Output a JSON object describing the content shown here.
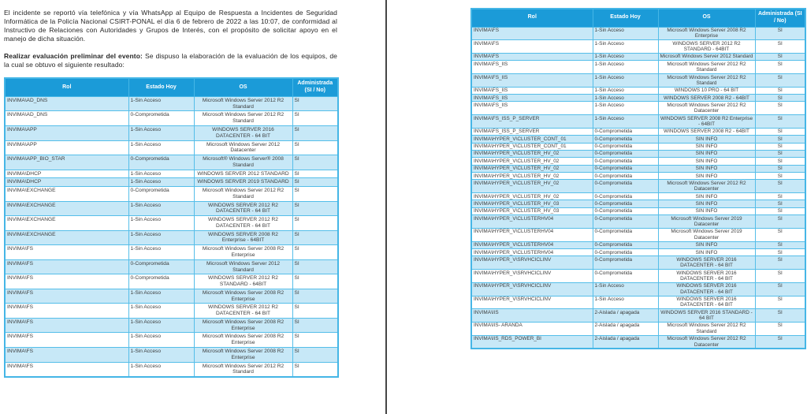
{
  "document": {
    "paragraph1": "El incidente se reportó vía telefónica y vía WhatsApp al Equipo de Respuesta a Incidentes de Seguridad Informática de la Policía Nacional CSIRT-PONAL el día 6 de febrero de 2022 a las 10:07, de conformidad al Instructivo de Relaciones con Autoridades y Grupos de Interés, con el propósito de solicitar apoyo en el manejo de dicha situación.",
    "paragraph2_lead": "Realizar evaluación preliminar del evento:",
    "paragraph2_rest": "Se dispuso la elaboración de la evaluación de los equipos, de la cual se obtuvo el siguiente resultado:"
  },
  "colors": {
    "header_bg": "#1b9bd8",
    "row_alt_bg": "#c7e8f7",
    "row_bg": "#ffffff",
    "cell_border": "#55bee9",
    "header_text": "#ffffff",
    "body_text": "#3c3c3c",
    "divider": "#454545"
  },
  "tables": {
    "headers": [
      "Rol",
      "Estado Hoy",
      "OS",
      "Administrada (SI / No)"
    ],
    "left": {
      "rows": [
        [
          "INVIMA\\AD_DNS",
          "1-Sin Acceso",
          "Microsoft Windows Server 2012 R2 Standard",
          "SI"
        ],
        [
          "INVIMA\\AD_DNS",
          "0-Comprometida",
          "Microsoft Windows Server 2012 R2 Standard",
          "SI"
        ],
        [
          "INVIMA\\APP",
          "1-Sin Acceso",
          "WINDOWS SERVER 2016 DATACENTER - 64 BIT",
          "SI"
        ],
        [
          "INVIMA\\APP",
          "1-Sin Acceso",
          "Microsoft Windows Server 2012 Datacenter",
          "SI"
        ],
        [
          "INVIMA\\APP_BIO_STAR",
          "0-Comprometida",
          "Microsoft® Windows Server® 2008 Standard",
          "SI"
        ],
        [
          "INVIMA\\DHCP",
          "1-Sin Acceso",
          "WINDOWS SERVER 2012 STANDARD",
          "SI"
        ],
        [
          "INVIMA\\DHCP",
          "1-Sin Acceso",
          "WINDOWS SERVER 2019 STANDARD",
          "SI"
        ],
        [
          "INVIMA\\EXCHANGE",
          "0-Comprometida",
          "Microsoft Windows Server 2012 R2 Standard",
          "SI"
        ],
        [
          "INVIMA\\EXCHANGE",
          "1-Sin Acceso",
          "WINDOWS SERVER 2012 R2 DATACENTER - 64 BIT",
          "SI"
        ],
        [
          "INVIMA\\EXCHANGE",
          "1-Sin Acceso",
          "WINDOWS SERVER 2012 R2 DATACENTER - 64 BIT",
          "SI"
        ],
        [
          "INVIMA\\EXCHANGE",
          "1-Sin Acceso",
          "WINDOWS SERVER 2008 R2 Enterprise - 64BIT",
          "SI"
        ],
        [
          "INVIMA\\FS",
          "1-Sin Acceso",
          "Microsoft Windows Server 2008 R2 Enterprise",
          "SI"
        ],
        [
          "INVIMA\\FS",
          "0-Comprometida",
          "Microsoft Windows Server 2012 Standard",
          "SI"
        ],
        [
          "INVIMA\\FS",
          "0-Comprometida",
          "WINDOWS SERVER 2012 R2 STANDARD - 64BIT",
          "SI"
        ],
        [
          "INVIMA\\FS",
          "1-Sin Acceso",
          "Microsoft Windows Server 2008 R2 Enterprise",
          "SI"
        ],
        [
          "INVIMA\\FS",
          "1-Sin Acceso",
          "WINDOWS SERVER 2012 R2 DATACENTER - 64 BIT",
          "SI"
        ],
        [
          "INVIMA\\FS",
          "1-Sin Acceso",
          "Microsoft Windows Server 2008 R2 Enterprise",
          "SI"
        ],
        [
          "INVIMA\\FS",
          "1-Sin Acceso",
          "Microsoft Windows Server 2008 R2 Enterprise",
          "SI"
        ],
        [
          "INVIMA\\FS",
          "1-Sin Acceso",
          "Microsoft Windows Server 2008 R2 Enterprise",
          "SI"
        ],
        [
          "INVIMA\\FS",
          "1-Sin Acceso",
          "Microsoft Windows Server 2012 R2 Standard",
          "SI"
        ]
      ]
    },
    "right": {
      "rows": [
        [
          "INVIMA\\FS",
          "1-Sin Acceso",
          "Microsoft Windows Server 2008 R2 Enterprise",
          "SI"
        ],
        [
          "INVIMA\\FS",
          "1-Sin Acceso",
          "WINDOWS SERVER 2012 R2 STANDARD - 64BIT",
          "SI"
        ],
        [
          "INVIMA\\FS",
          "1-Sin Acceso",
          "Microsoft Windows Server 2012 Standard",
          "SI"
        ],
        [
          "INVIMA\\FS_IIS",
          "1-Sin Acceso",
          "Microsoft Windows Server 2012 R2 Standard",
          "SI"
        ],
        [
          "INVIMA\\FS_IIS",
          "1-Sin Acceso",
          "Microsoft Windows Server 2012 R2 Standard",
          "SI"
        ],
        [
          "INVIMA\\FS_IIS",
          "1-Sin Acceso",
          "WINDOWS 10 PRO - 64 BIT",
          "SI"
        ],
        [
          "INVIMA\\FS_IIS",
          "1-Sin Acceso",
          "WINDOWS SERVER 2008 R2 - 64BIT",
          "SI"
        ],
        [
          "INVIMA\\FS_IIS",
          "1-Sin Acceso",
          "Microsoft Windows Server 2012 R2 Datacenter",
          "SI"
        ],
        [
          "INVIMA\\FS_ISS_P_SERVER",
          "1-Sin Acceso",
          "WINDOWS SERVER 2008 R2 Enterprise - 64BIT",
          "SI"
        ],
        [
          "INVIMA\\FS_ISS_P_SERVER",
          "0-Comprometida",
          "WINDOWS SERVER 2008 R2 - 64BIT",
          "SI"
        ],
        [
          "INVIMA\\HYPER_V\\CLUSTER_CONT_01",
          "0-Comprometida",
          "SIN INFO",
          "SI"
        ],
        [
          "INVIMA\\HYPER_V\\CLUSTER_CONT_01",
          "0-Comprometida",
          "SIN INFO",
          "SI"
        ],
        [
          "INVIMA\\HYPER_V\\CLUSTER_HV_02",
          "0-Comprometida",
          "SIN INFO",
          "SI"
        ],
        [
          "INVIMA\\HYPER_V\\CLUSTER_HV_02",
          "0-Comprometida",
          "SIN INFO",
          "SI"
        ],
        [
          "INVIMA\\HYPER_V\\CLUSTER_HV_02",
          "0-Comprometida",
          "SIN INFO",
          "SI"
        ],
        [
          "INVIMA\\HYPER_V\\CLUSTER_HV_02",
          "0-Comprometida",
          "SIN INFO",
          "SI"
        ],
        [
          "INVIMA\\HYPER_V\\CLUSTER_HV_02",
          "0-Comprometida",
          "Microsoft Windows Server 2012 R2 Datacenter",
          "SI"
        ],
        [
          "INVIMA\\HYPER_V\\CLUSTER_HV_02",
          "0-Comprometida",
          "SIN INFO",
          "SI"
        ],
        [
          "INVIMA\\HYPER_V\\CLUSTER_HV_03",
          "0-Comprometida",
          "SIN INFO",
          "SI"
        ],
        [
          "INVIMA\\HYPER_V\\CLUSTER_HV_03",
          "0-Comprometida",
          "SIN INFO",
          "SI"
        ],
        [
          "INVIMA\\HYPER_V\\CLUSTERHV04",
          "0-Comprometida",
          "Microsoft Windows Server 2019 Datacenter",
          "SI"
        ],
        [
          "INVIMA\\HYPER_V\\CLUSTERHV04",
          "0-Comprometida",
          "Microsoft Windows Server 2019 Datacenter",
          "SI"
        ],
        [
          "INVIMA\\HYPER_V\\CLUSTERHV04",
          "0-Comprometida",
          "SIN INFO",
          "SI"
        ],
        [
          "INVIMA\\HYPER_V\\CLUSTERHV04",
          "0-Comprometida",
          "SIN INFO",
          "SI"
        ],
        [
          "INVIMA\\HYPER_V\\SRVHCICLINV",
          "0-Comprometida",
          "WINDOWS SERVER 2016 DATACENTER - 64 BIT",
          "SI"
        ],
        [
          "INVIMA\\HYPER_V\\SRVHCICLINV",
          "0-Comprometida",
          "WINDOWS SERVER 2016 DATACENTER - 64 BIT",
          "SI"
        ],
        [
          "INVIMA\\HYPER_V\\SRVHCICLINV",
          "1-Sin Acceso",
          "WINDOWS SERVER 2016 DATACENTER - 64 BIT",
          "SI"
        ],
        [
          "INVIMA\\HYPER_V\\SRVHCICLINV",
          "1-Sin Acceso",
          "WINDOWS SERVER 2016 DATACENTER - 64 BIT",
          "SI"
        ],
        [
          "INVIMA\\IIS",
          "2-Aislada / apagada",
          "WINDOWS SERVER 2016 STANDARD - 64 BIT",
          "SI"
        ],
        [
          "INVIMA\\IIS- ARANDA",
          "2-Aislada / apagada",
          "Microsoft Windows Server 2012 R2 Standard",
          "SI"
        ],
        [
          "INVIMA\\IIS_RDS_POWER_BI",
          "2-Aislada / apagada",
          "Microsoft Windows Server 2012 R2 Datacenter",
          "SI"
        ]
      ]
    }
  }
}
